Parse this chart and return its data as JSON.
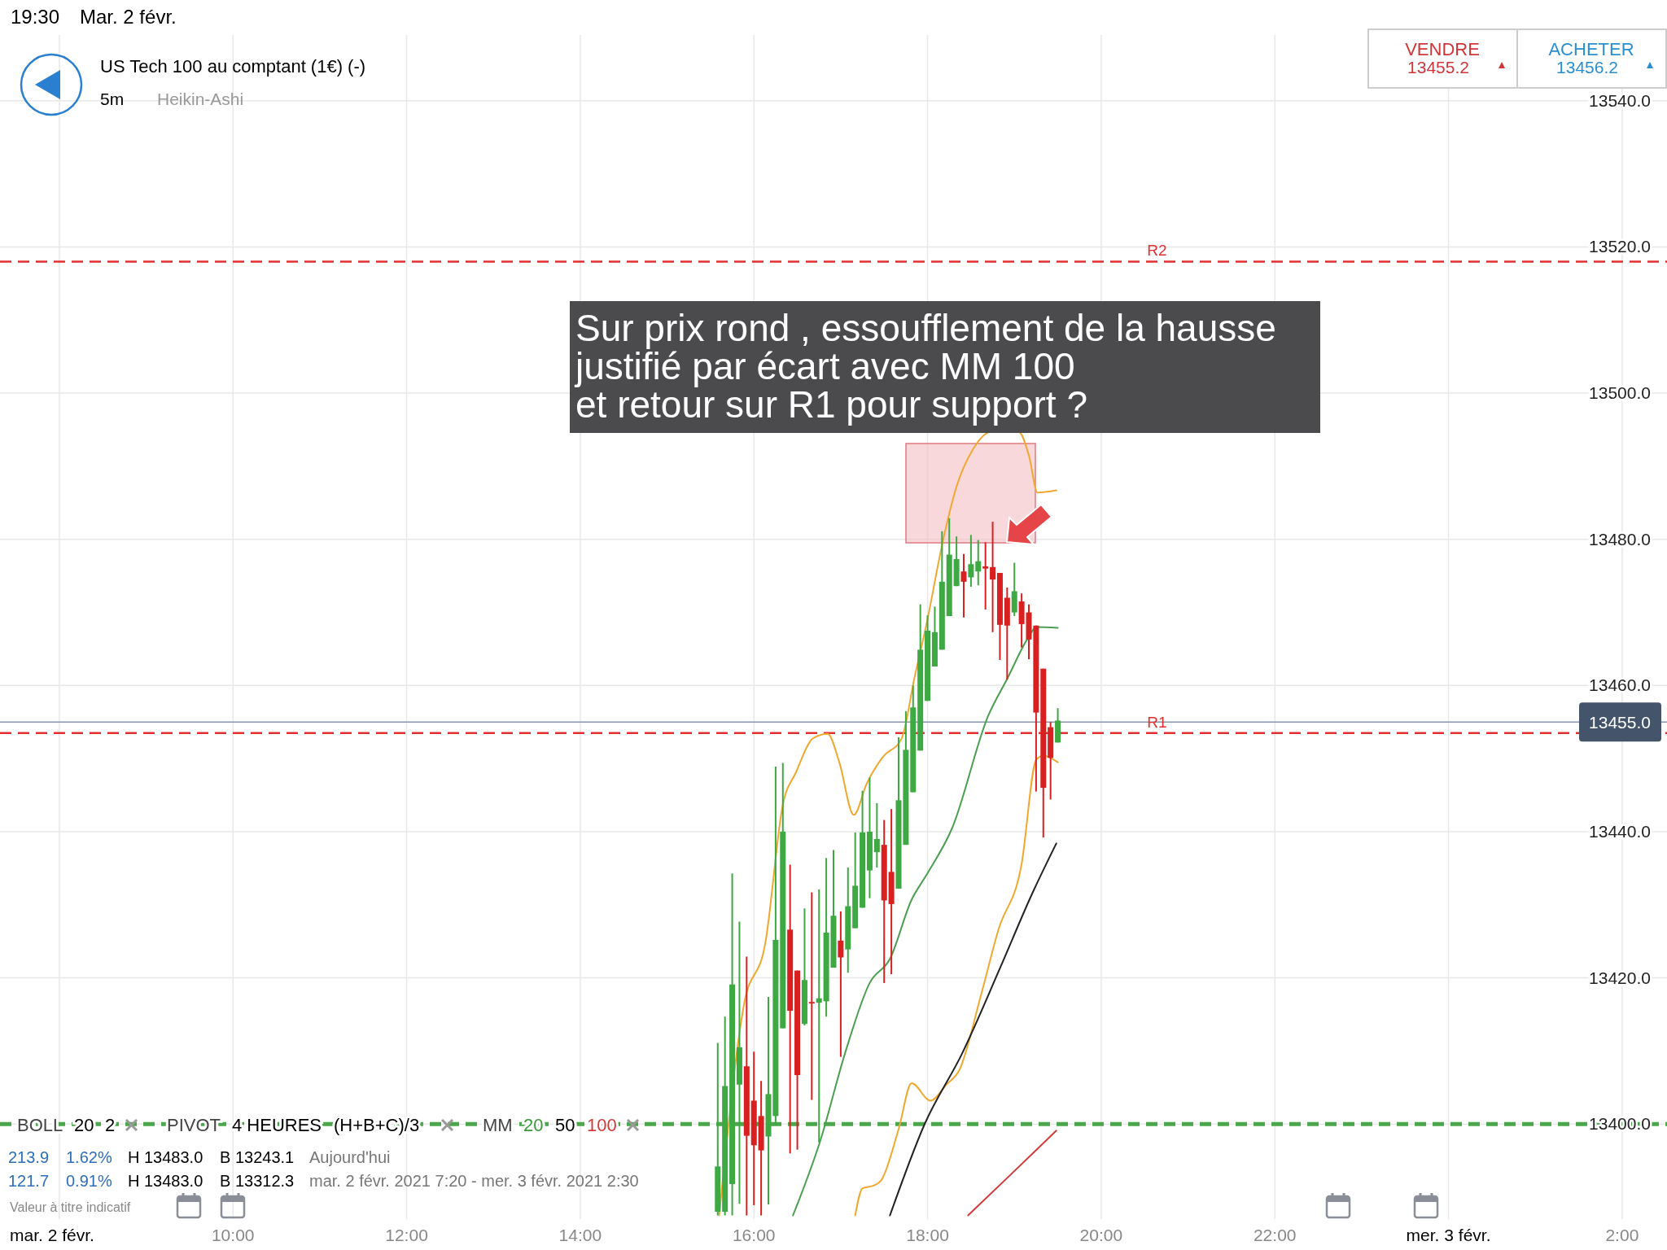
{
  "chart_data": {
    "type": "candlestick",
    "title": "US Tech 100 au comptant (1€) (-)",
    "x": [
      "2021-02-02T15:35",
      "2021-02-02T15:40",
      "2021-02-02T15:45",
      "2021-02-02T15:50",
      "2021-02-02T15:55",
      "2021-02-02T16:00",
      "2021-02-02T16:05",
      "2021-02-02T16:10",
      "2021-02-02T16:15",
      "2021-02-02T16:20",
      "2021-02-02T16:25",
      "2021-02-02T16:30",
      "2021-02-02T16:35",
      "2021-02-02T16:40",
      "2021-02-02T16:45",
      "2021-02-02T16:50",
      "2021-02-02T16:55",
      "2021-02-02T17:00",
      "2021-02-02T17:05",
      "2021-02-02T17:10",
      "2021-02-02T17:15",
      "2021-02-02T17:20",
      "2021-02-02T17:25",
      "2021-02-02T17:30",
      "2021-02-02T17:35",
      "2021-02-02T17:40",
      "2021-02-02T17:45",
      "2021-02-02T17:50",
      "2021-02-02T17:55",
      "2021-02-02T18:00",
      "2021-02-02T18:05",
      "2021-02-02T18:10",
      "2021-02-02T18:15",
      "2021-02-02T18:20",
      "2021-02-02T18:25",
      "2021-02-02T18:30",
      "2021-02-02T18:35",
      "2021-02-02T18:40",
      "2021-02-02T18:45",
      "2021-02-02T18:50",
      "2021-02-02T18:55",
      "2021-02-02T19:00",
      "2021-02-02T19:05",
      "2021-02-02T19:10",
      "2021-02-02T19:15",
      "2021-02-02T19:20",
      "2021-02-02T19:25",
      "2021-02-02T19:30"
    ],
    "ohlc": [
      [
        13388.0,
        13411.1,
        13387.5,
        13394.2
      ],
      [
        13388.0,
        13414.7,
        13387.5,
        13405.2
      ],
      [
        13391.8,
        13434.3,
        13387.5,
        13419.1
      ],
      [
        13405.4,
        13427.7,
        13389.1,
        13410.5
      ],
      [
        13407.9,
        13422.9,
        13387.5,
        13398.4
      ],
      [
        13403.2,
        13409.9,
        13388.9,
        13397.1
      ],
      [
        13401.1,
        13405.9,
        13387.5,
        13396.4
      ],
      [
        13398.3,
        13417.4,
        13389.0,
        13404.1
      ],
      [
        13401.1,
        13448.9,
        13399.8,
        13425.2
      ],
      [
        13413.1,
        13449.4,
        13413.1,
        13440.0
      ],
      [
        13426.6,
        13435.5,
        13396.0,
        13415.5
      ],
      [
        13421.0,
        13421.0,
        13396.5,
        13406.7
      ],
      [
        13413.7,
        13429.5,
        13413.5,
        13419.7
      ],
      [
        13416.7,
        13431.7,
        13403.3,
        13416.5
      ],
      [
        13416.6,
        13432.1,
        13397.5,
        13417.2
      ],
      [
        13416.8,
        13436.4,
        13414.7,
        13426.2
      ],
      [
        13421.4,
        13437.5,
        13421.4,
        13428.5
      ],
      [
        13425.1,
        13429.1,
        13409.2,
        13422.8
      ],
      [
        13423.9,
        13435.1,
        13420.7,
        13429.8
      ],
      [
        13426.8,
        13439.9,
        13426.8,
        13432.6
      ],
      [
        13429.6,
        13445.6,
        13429.6,
        13439.9
      ],
      [
        13434.7,
        13447.4,
        13430.9,
        13440.0
      ],
      [
        13437.2,
        13443.9,
        13435.1,
        13439.0
      ],
      [
        13438.2,
        13441.6,
        13419.3,
        13430.6
      ],
      [
        13434.5,
        13443.1,
        13420.5,
        13430.1
      ],
      [
        13432.2,
        13452.9,
        13432.2,
        13444.3
      ],
      [
        13438.2,
        13456.5,
        13438.2,
        13451.2
      ],
      [
        13445.4,
        13460.0,
        13445.4,
        13457.0
      ],
      [
        13451.1,
        13471.1,
        13451.1,
        13464.9
      ],
      [
        13457.9,
        13469.6,
        13457.9,
        13467.5
      ],
      [
        13462.6,
        13470.8,
        13462.6,
        13467.3
      ],
      [
        13464.9,
        13481.1,
        13464.9,
        13474.2
      ],
      [
        13469.5,
        13482.9,
        13469.5,
        13477.9
      ],
      [
        13473.6,
        13480.4,
        13473.6,
        13477.3
      ],
      [
        13475.6,
        13478.0,
        13469.3,
        13474.2
      ],
      [
        13474.8,
        13480.6,
        13473.5,
        13476.6
      ],
      [
        13475.6,
        13479.9,
        13473.7,
        13477.0
      ],
      [
        13476.3,
        13479.6,
        13470.4,
        13476.0
      ],
      [
        13476.2,
        13482.4,
        13467.3,
        13474.5
      ],
      [
        13475.4,
        13475.4,
        13463.5,
        13468.3
      ],
      [
        13472.0,
        13473.4,
        13460.8,
        13468.2
      ],
      [
        13470.0,
        13476.8,
        13469.5,
        13472.9
      ],
      [
        13471.5,
        13472.6,
        13465.2,
        13468.4
      ],
      [
        13470.0,
        13471.1,
        13463.6,
        13466.3
      ],
      [
        13468.2,
        13468.2,
        13445.5,
        13456.3
      ],
      [
        13462.3,
        13462.3,
        13439.2,
        13446.0
      ],
      [
        13454.3,
        13455.0,
        13444.4,
        13450.1
      ],
      [
        13452.2,
        13456.9,
        13452.2,
        13455.2
      ]
    ],
    "colors": [
      "#3ea843",
      "#3ea843",
      "#3ea843",
      "#3ea843",
      "#d92020",
      "#d92020",
      "#d92020",
      "#3ea843",
      "#3ea843",
      "#3ea843",
      "#d92020",
      "#d92020",
      "#3ea843",
      "#d92020",
      "#3ea843",
      "#3ea843",
      "#3ea843",
      "#d92020",
      "#3ea843",
      "#3ea843",
      "#3ea843",
      "#3ea843",
      "#3ea843",
      "#d92020",
      "#d92020",
      "#3ea843",
      "#3ea843",
      "#3ea843",
      "#3ea843",
      "#3ea843",
      "#3ea843",
      "#3ea843",
      "#3ea843",
      "#3ea843",
      "#d92020",
      "#3ea843",
      "#3ea843",
      "#d92020",
      "#d92020",
      "#d92020",
      "#d92020",
      "#3ea843",
      "#d92020",
      "#d92020",
      "#d92020",
      "#d92020",
      "#d92020",
      "#3ea843"
    ],
    "series": [
      {
        "type": "line",
        "color": "#f0a830",
        "x": [
          "2021-02-02T15:36",
          "2021-02-02T15:53",
          "2021-02-02T16:08",
          "2021-02-02T16:20",
          "2021-02-02T16:29",
          "2021-02-02T16:41",
          "2021-02-02T16:51",
          "2021-02-02T16:59",
          "2021-02-02T17:09",
          "2021-02-02T17:18",
          "2021-02-02T17:29",
          "2021-02-02T17:42",
          "2021-02-02T17:51",
          "2021-02-02T18:00",
          "2021-02-02T18:10",
          "2021-02-02T18:20",
          "2021-02-02T18:31",
          "2021-02-02T18:44",
          "2021-02-02T19:03",
          "2021-02-02T19:10",
          "2021-02-02T19:16",
          "2021-02-02T19:29"
        ],
        "values": [
          13387.5,
          13416.2,
          13424.9,
          13443.7,
          13448.1,
          13452.8,
          13453.4,
          13449.5,
          13442.3,
          13446.6,
          13450.2,
          13452.7,
          13461.1,
          13469.1,
          13479.2,
          13487.2,
          13492.2,
          13494.7,
          13494.7,
          13491.5,
          13486.4,
          13486.7
        ]
      },
      {
        "type": "line",
        "color": "#f0a830",
        "x": [
          "2021-02-02T17:10",
          "2021-02-02T17:15",
          "2021-02-02T17:23",
          "2021-02-02T17:28",
          "2021-02-02T17:40",
          "2021-02-02T17:49",
          "2021-02-02T18:02",
          "2021-02-02T18:13",
          "2021-02-02T18:22",
          "2021-02-02T18:37",
          "2021-02-02T18:49",
          "2021-02-02T19:05",
          "2021-02-02T19:15",
          "2021-02-02T19:20",
          "2021-02-02T19:30"
        ],
        "values": [
          13387.5,
          13391.2,
          13391.6,
          13392.3,
          13399.3,
          13405.6,
          13403.2,
          13405.4,
          13407.4,
          13417.7,
          13426.6,
          13435.6,
          13449.8,
          13450.4,
          13449.5
        ]
      },
      {
        "type": "line",
        "color": "#4c9e50",
        "x": [
          "2021-02-02T16:27",
          "2021-02-02T16:46",
          "2021-02-02T17:03",
          "2021-02-02T17:20",
          "2021-02-02T17:34",
          "2021-02-02T17:49",
          "2021-02-02T17:59",
          "2021-02-02T18:17",
          "2021-02-02T18:42",
          "2021-02-02T18:55",
          "2021-02-02T19:10",
          "2021-02-02T19:15",
          "2021-02-02T19:30"
        ],
        "values": [
          13387.5,
          13397.8,
          13409.7,
          13419.3,
          13422.6,
          13430.7,
          13434.0,
          13440.5,
          13455.9,
          13460.9,
          13466.7,
          13468.0,
          13467.9
        ]
      },
      {
        "type": "line",
        "color": "#222222",
        "x": [
          "2021-02-02T17:34",
          "2021-02-02T17:58",
          "2021-02-02T18:24",
          "2021-02-02T18:50",
          "2021-02-02T19:12",
          "2021-02-02T19:29"
        ],
        "values": [
          13387.5,
          13400.0,
          13409.7,
          13421.3,
          13431.4,
          13438.4
        ]
      },
      {
        "type": "line",
        "color": "#d33a3a",
        "x": [
          "2021-02-02T18:28",
          "2021-02-02T18:57",
          "2021-02-02T19:29"
        ],
        "values": [
          13387.5,
          13393.0,
          13399.1
        ]
      }
    ],
    "xlim": [
      "2021-02-02T07:19",
      "2021-02-03T02:31"
    ],
    "ylim": [
      13387,
      13549
    ],
    "xticks": [
      {
        "value": "2021-02-02T08:00",
        "label": null
      },
      {
        "value": "2021-02-02T10:00",
        "label": "10:00"
      },
      {
        "value": "2021-02-02T12:00",
        "label": "12:00"
      },
      {
        "value": "2021-02-02T14:00",
        "label": "14:00"
      },
      {
        "value": "2021-02-02T16:00",
        "label": "16:00"
      },
      {
        "value": "2021-02-02T18:00",
        "label": "18:00"
      },
      {
        "value": "2021-02-02T20:00",
        "label": "20:00"
      },
      {
        "value": "2021-02-02T22:00",
        "label": "22:00"
      },
      {
        "value": "2021-02-03T00:00",
        "label": "mer. 3 févr."
      },
      {
        "value": "2021-02-03T02:00",
        "label": "2:00"
      }
    ],
    "yticks": [
      {
        "value": 13400,
        "label": "13400.0"
      },
      {
        "value": 13420,
        "label": "13420.0"
      },
      {
        "value": 13440,
        "label": "13440.0"
      },
      {
        "value": 13460,
        "label": "13460.0"
      },
      {
        "value": 13480,
        "label": "13480.0"
      },
      {
        "value": 13500,
        "label": "13500.0"
      },
      {
        "value": 13520,
        "label": "13520.0"
      },
      {
        "value": 13540,
        "label": "13540.0"
      }
    ],
    "grid": true,
    "ref_lines": [
      {
        "axis": "y",
        "value": 13518,
        "label": "R2",
        "color": "#e03030",
        "line_style": "dashed"
      },
      {
        "axis": "y",
        "value": 13453.5,
        "label": "R1",
        "color": "#e03030",
        "line_style": "dashed"
      },
      {
        "axis": "y",
        "value": 13400,
        "color": "#4ca64c",
        "line_style": "dashed"
      },
      {
        "axis": "y",
        "value": 13455.0,
        "label": "13455.0",
        "color": "#8a96a8",
        "line_style": "solid"
      }
    ],
    "annotations": [
      "19:30",
      "Mar. 2 févr.",
      "5m",
      "Heikin-Ashi",
      "VENDRE",
      "13455.2",
      "ACHETER",
      "13456.2",
      "Sur prix rond , essoufflement de la hausse\njustifié par écart avec MM 100\net retour sur R1 pour support ?",
      "BOLL",
      "20",
      "2",
      "PIVOT",
      "4 HEURES",
      "(H+B+C)/3",
      "MM",
      "20",
      "50",
      "100",
      "213.9",
      "1.62%",
      "H 13483.0",
      "B 13243.1",
      "Aujourd'hui",
      "121.7",
      "0.91%",
      "H 13483.0",
      "B 13312.3",
      "mar. 2 févr. 2021 7:20 - mer. 3 févr. 2021 2:30",
      "Valeur à titre indicatif",
      "mar. 2 févr."
    ]
  }
}
